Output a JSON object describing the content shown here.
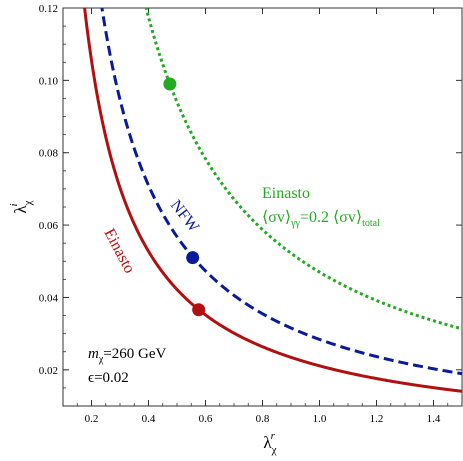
{
  "chart_data": {
    "type": "line",
    "x_axis": {
      "label_main": "λ",
      "label_sub": "χ",
      "label_sup": "r",
      "range": [
        0.1,
        1.5
      ],
      "ticks": [
        0.2,
        0.4,
        0.6,
        0.8,
        1.0,
        1.2,
        1.4
      ],
      "tick_labels": [
        "0.2",
        "0.4",
        "0.6",
        "0.8",
        "1.0",
        "1.2",
        "1.4"
      ]
    },
    "y_axis": {
      "label_main": "λ",
      "label_sub": "χ",
      "label_sup": "i",
      "range": [
        0.01,
        0.12
      ],
      "ticks": [
        0.02,
        0.04,
        0.06,
        0.08,
        0.1,
        0.12
      ],
      "tick_labels": [
        "0.02",
        "0.04",
        "0.06",
        "0.08",
        "0.10",
        "0.12"
      ]
    },
    "series": [
      {
        "name": "Einasto",
        "color": "#b01010",
        "style": "solid",
        "k": 0.0211,
        "marker": {
          "x": 0.576,
          "y": 0.0366
        }
      },
      {
        "name": "NFW",
        "color": "#0a1a99",
        "style": "dashed",
        "k": 0.0284,
        "marker": {
          "x": 0.555,
          "y": 0.051
        }
      },
      {
        "name": "Einasto",
        "color": "#22aa22",
        "style": "dotted",
        "k": 0.047,
        "marker": {
          "x": 0.475,
          "y": 0.099
        }
      }
    ],
    "annotations": {
      "green_label": "Einasto",
      "green_formula_1": "⟨σv⟩",
      "green_formula_sub1": "γγ",
      "green_formula_2": "=0.2 ⟨σv⟩",
      "green_formula_sub2": "total",
      "mass_symbol": "m",
      "mass_sub": "χ",
      "mass_value": "=260 GeV",
      "epsilon_text": "ϵ=0.02"
    }
  }
}
